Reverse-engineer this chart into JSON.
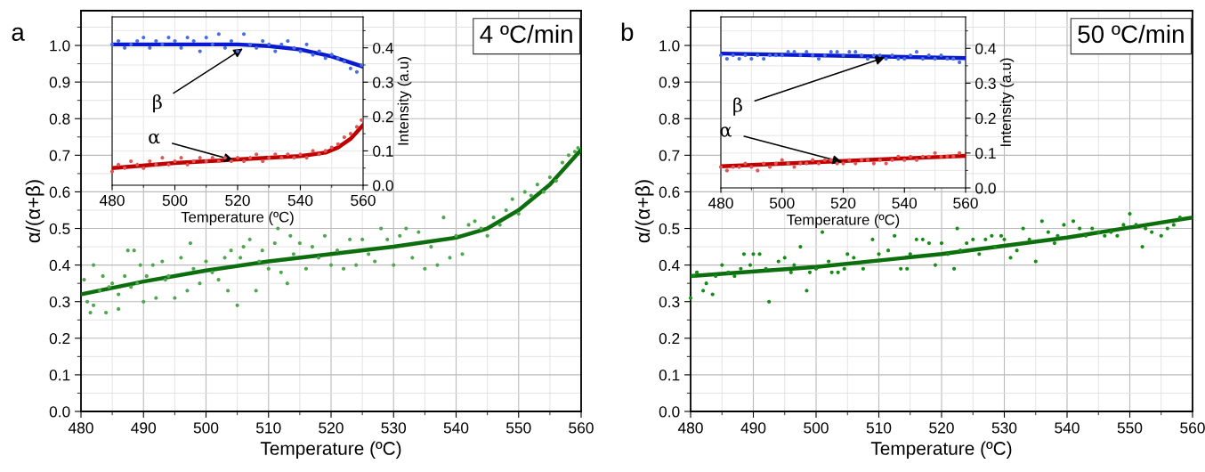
{
  "chart_data": [
    {
      "type": "scatter",
      "title": "a",
      "xlabel": "Temperature (ºC)",
      "ylabel": "α/(α+β)",
      "xlim": [
        480,
        560
      ],
      "xticks": [
        480,
        490,
        500,
        510,
        520,
        530,
        540,
        550,
        560
      ],
      "ylim": [
        0,
        1.095
      ],
      "yticks": [
        {
          "value": 0,
          "label": "0.0"
        },
        {
          "value": 0.1,
          "label": "0.1"
        },
        {
          "value": 0.2,
          "label": "0.2"
        },
        {
          "value": 0.3,
          "label": "0.3"
        },
        {
          "value": 0.4,
          "label": "0.4"
        },
        {
          "value": 0.5,
          "label": "0.5"
        },
        {
          "value": 0.6,
          "label": "0.6"
        },
        {
          "value": 0.7,
          "label": "0.7"
        },
        {
          "value": 0.8,
          "label": "0.8"
        },
        {
          "value": 0.9,
          "label": "0.9"
        },
        {
          "value": 1,
          "label": "1.0"
        }
      ],
      "grid": true,
      "annotations": [
        "4 ºC/min"
      ],
      "series": [
        {
          "type": "scatter",
          "marker": "circle",
          "color": "#4ea64e",
          "x": [
            480.5,
            481,
            481.5,
            482,
            482,
            483,
            483.5,
            484,
            484.5,
            485,
            486,
            486,
            487,
            487.5,
            488,
            488.5,
            489,
            489.5,
            490,
            490.5,
            491.5,
            492,
            493,
            493.5,
            494,
            495,
            496,
            497,
            497.5,
            498,
            499,
            500,
            501,
            502,
            503,
            503.5,
            504,
            505,
            505.5,
            506,
            507,
            508,
            508.5,
            509,
            510,
            511,
            511.5,
            512,
            513,
            513.5,
            514,
            515,
            516,
            517,
            518,
            519,
            520,
            521,
            522,
            523,
            524,
            525,
            526,
            527,
            528,
            529,
            530,
            531,
            532,
            533,
            534,
            535,
            536,
            537,
            538,
            539,
            540,
            541,
            542,
            543,
            544,
            545,
            546,
            547,
            548,
            549,
            550,
            551,
            552,
            553,
            554,
            555,
            556,
            557,
            558,
            559,
            559.5
          ],
          "values": [
            0.36,
            0.3,
            0.27,
            0.4,
            0.29,
            0.33,
            0.37,
            0.27,
            0.34,
            0.35,
            0.32,
            0.28,
            0.37,
            0.44,
            0.34,
            0.44,
            0.35,
            0.4,
            0.3,
            0.37,
            0.4,
            0.31,
            0.41,
            0.36,
            0.37,
            0.31,
            0.42,
            0.33,
            0.46,
            0.39,
            0.35,
            0.41,
            0.38,
            0.36,
            0.42,
            0.33,
            0.44,
            0.29,
            0.42,
            0.45,
            0.47,
            0.33,
            0.41,
            0.44,
            0.39,
            0.46,
            0.5,
            0.38,
            0.35,
            0.48,
            0.43,
            0.46,
            0.39,
            0.45,
            0.42,
            0.48,
            0.4,
            0.44,
            0.39,
            0.47,
            0.4,
            0.47,
            0.43,
            0.41,
            0.5,
            0.47,
            0.4,
            0.48,
            0.5,
            0.42,
            0.49,
            0.39,
            0.45,
            0.4,
            0.53,
            0.42,
            0.48,
            0.43,
            0.51,
            0.52,
            0.5,
            0.48,
            0.53,
            0.51,
            0.55,
            0.58,
            0.54,
            0.6,
            0.59,
            0.62,
            0.6,
            0.64,
            0.63,
            0.68,
            0.7,
            0.71,
            0.72
          ]
        },
        {
          "type": "line",
          "color": "#0d6e0d",
          "x": [
            480,
            490,
            500,
            510,
            520,
            530,
            540,
            545,
            550,
            555,
            560
          ],
          "values": [
            0.32,
            0.355,
            0.385,
            0.41,
            0.43,
            0.45,
            0.475,
            0.5,
            0.55,
            0.62,
            0.715
          ]
        }
      ]
    },
    {
      "type": "scatter",
      "xlabel": "Temperature (ºC)",
      "ylabel": "Intensity (a.u)",
      "xlim": [
        480,
        560
      ],
      "xticks": [
        480,
        500,
        520,
        540,
        560
      ],
      "ylim": [
        0,
        0.49
      ],
      "yticks": [
        {
          "value": 0,
          "label": "0.0"
        },
        0.1,
        0.2,
        0.3,
        0.4
      ],
      "grid": true,
      "annotations": [
        {
          "text": "β",
          "x": 522,
          "y": 0.4
        },
        {
          "text": "α",
          "x": 519,
          "y": 0.072
        }
      ],
      "series": [
        {
          "type": "scatter",
          "marker": "circle",
          "color": "#4a6ee0",
          "x": [
            480,
            482,
            484,
            486,
            488,
            490,
            492,
            494,
            496,
            498,
            500,
            502,
            504,
            506,
            508,
            510,
            512,
            514,
            516,
            518,
            520,
            522,
            524,
            526,
            528,
            530,
            532,
            534,
            536,
            538,
            540,
            542,
            544,
            546,
            548,
            550,
            552,
            554,
            556,
            558,
            559.5
          ],
          "values": [
            0.41,
            0.42,
            0.4,
            0.41,
            0.42,
            0.43,
            0.4,
            0.42,
            0.41,
            0.43,
            0.42,
            0.4,
            0.43,
            0.42,
            0.39,
            0.43,
            0.41,
            0.44,
            0.4,
            0.42,
            0.39,
            0.44,
            0.41,
            0.4,
            0.42,
            0.41,
            0.39,
            0.41,
            0.42,
            0.4,
            0.39,
            0.41,
            0.38,
            0.39,
            0.37,
            0.38,
            0.37,
            0.36,
            0.34,
            0.33,
            0.35
          ]
        },
        {
          "type": "line",
          "color": "#0a1ad0",
          "x": [
            480,
            500,
            520,
            530,
            540,
            550,
            555,
            560
          ],
          "values": [
            0.41,
            0.41,
            0.41,
            0.405,
            0.395,
            0.375,
            0.36,
            0.345
          ]
        },
        {
          "type": "scatter",
          "marker": "circle",
          "color": "#e05555",
          "x": [
            480,
            482,
            484,
            486,
            488,
            490,
            492,
            494,
            496,
            498,
            500,
            502,
            504,
            506,
            508,
            510,
            512,
            514,
            516,
            518,
            520,
            522,
            524,
            526,
            528,
            530,
            532,
            534,
            536,
            538,
            540,
            542,
            544,
            546,
            548,
            550,
            552,
            554,
            556,
            558,
            559.5
          ],
          "values": [
            0.04,
            0.06,
            0.05,
            0.07,
            0.06,
            0.05,
            0.07,
            0.06,
            0.08,
            0.06,
            0.07,
            0.08,
            0.06,
            0.07,
            0.08,
            0.07,
            0.08,
            0.07,
            0.08,
            0.07,
            0.08,
            0.07,
            0.08,
            0.09,
            0.07,
            0.08,
            0.09,
            0.08,
            0.09,
            0.08,
            0.09,
            0.08,
            0.1,
            0.09,
            0.1,
            0.11,
            0.12,
            0.14,
            0.15,
            0.17,
            0.19
          ]
        },
        {
          "type": "line",
          "color": "#c00000",
          "x": [
            480,
            500,
            520,
            540,
            548,
            552,
            556,
            560
          ],
          "values": [
            0.05,
            0.065,
            0.075,
            0.085,
            0.095,
            0.11,
            0.135,
            0.175
          ]
        }
      ]
    },
    {
      "type": "scatter",
      "title": "b",
      "xlabel": "Temperature (ºC)",
      "ylabel": "α/(α+β)",
      "xlim": [
        480,
        560
      ],
      "xticks": [
        480,
        490,
        500,
        510,
        520,
        530,
        540,
        550,
        560
      ],
      "ylim": [
        0,
        1.095
      ],
      "yticks": [
        {
          "value": 0,
          "label": "0.0"
        },
        {
          "value": 0.1,
          "label": "0.1"
        },
        {
          "value": 0.2,
          "label": "0.2"
        },
        {
          "value": 0.3,
          "label": "0.3"
        },
        {
          "value": 0.4,
          "label": "0.4"
        },
        {
          "value": 0.5,
          "label": "0.5"
        },
        {
          "value": 0.6,
          "label": "0.6"
        },
        {
          "value": 0.7,
          "label": "0.7"
        },
        {
          "value": 0.8,
          "label": "0.8"
        },
        {
          "value": 0.9,
          "label": "0.9"
        },
        {
          "value": 1,
          "label": "1.0"
        }
      ],
      "grid": true,
      "annotations": [
        "50 ºC/min"
      ],
      "series": [
        {
          "type": "scatter",
          "marker": "circle",
          "color": "#158c15",
          "x": [
            480,
            480.5,
            481,
            482,
            482.5,
            483.5,
            484,
            485,
            486,
            487,
            488,
            488.5,
            489.5,
            490,
            491,
            492,
            492.5,
            494,
            495,
            496,
            496.5,
            497.5,
            498.5,
            499,
            500,
            501,
            502,
            502.5,
            503.5,
            504.5,
            505,
            506,
            507.5,
            509,
            510,
            511.5,
            512.5,
            513.5,
            514.5,
            515,
            516,
            517,
            518,
            519,
            520,
            521,
            522,
            522.5,
            523,
            524,
            525,
            526,
            527,
            528,
            528.5,
            529.5,
            530,
            531,
            532,
            533,
            534,
            535,
            536,
            537,
            538,
            538.5,
            539.5,
            541,
            542,
            543,
            544,
            545,
            546,
            547,
            548,
            549,
            550,
            551,
            552,
            552.5,
            553.5,
            555,
            556,
            557,
            558
          ],
          "values": [
            0.31,
            0.37,
            0.38,
            0.33,
            0.35,
            0.32,
            0.37,
            0.4,
            0.38,
            0.37,
            0.39,
            0.43,
            0.4,
            0.43,
            0.43,
            0.39,
            0.3,
            0.41,
            0.42,
            0.38,
            0.4,
            0.45,
            0.33,
            0.38,
            0.39,
            0.49,
            0.41,
            0.38,
            0.38,
            0.39,
            0.43,
            0.42,
            0.39,
            0.47,
            0.43,
            0.44,
            0.48,
            0.39,
            0.39,
            0.43,
            0.47,
            0.47,
            0.46,
            0.4,
            0.46,
            0.43,
            0.39,
            0.5,
            0.44,
            0.46,
            0.47,
            0.43,
            0.47,
            0.48,
            0.45,
            0.48,
            0.47,
            0.42,
            0.44,
            0.5,
            0.47,
            0.41,
            0.52,
            0.49,
            0.46,
            0.48,
            0.51,
            0.52,
            0.5,
            0.48,
            0.5,
            0.49,
            0.48,
            0.49,
            0.48,
            0.51,
            0.54,
            0.51,
            0.45,
            0.5,
            0.49,
            0.48,
            0.5,
            0.51,
            0.53
          ]
        },
        {
          "type": "line",
          "color": "#0d6e0d",
          "x": [
            480,
            500,
            520,
            540,
            560
          ],
          "values": [
            0.37,
            0.395,
            0.43,
            0.475,
            0.53
          ]
        }
      ]
    },
    {
      "type": "scatter",
      "xlabel": "Temperature (ºC)",
      "ylabel": "Intensity (a.u)",
      "xlim": [
        480,
        560
      ],
      "xticks": [
        480,
        500,
        520,
        540,
        560
      ],
      "ylim": [
        0,
        0.49
      ],
      "yticks": [
        {
          "value": 0,
          "label": "0.0"
        },
        0.1,
        0.2,
        0.3,
        0.4
      ],
      "grid": true,
      "annotations": [
        {
          "text": "β",
          "x": 534,
          "y": 0.375
        },
        {
          "text": "α",
          "x": 520,
          "y": 0.073
        }
      ],
      "series": [
        {
          "type": "scatter",
          "marker": "circle",
          "color": "#4a6ee0",
          "x": [
            480,
            482,
            484,
            486,
            488,
            490,
            492,
            494,
            496,
            498,
            500,
            502,
            504,
            506,
            508,
            510,
            512,
            514,
            516,
            518,
            520,
            522,
            524,
            526,
            528,
            530,
            532,
            534,
            536,
            538,
            540,
            542,
            544,
            546,
            548,
            550,
            552,
            554,
            556,
            558
          ],
          "values": [
            0.38,
            0.37,
            0.38,
            0.37,
            0.38,
            0.37,
            0.38,
            0.37,
            0.38,
            0.38,
            0.38,
            0.39,
            0.39,
            0.38,
            0.39,
            0.38,
            0.37,
            0.38,
            0.39,
            0.39,
            0.38,
            0.39,
            0.39,
            0.38,
            0.37,
            0.38,
            0.38,
            0.37,
            0.38,
            0.37,
            0.37,
            0.38,
            0.39,
            0.37,
            0.38,
            0.37,
            0.38,
            0.37,
            0.37,
            0.36
          ]
        },
        {
          "type": "line",
          "color": "#0a1ad0",
          "x": [
            480,
            560
          ],
          "values": [
            0.385,
            0.372
          ]
        },
        {
          "type": "scatter",
          "marker": "circle",
          "color": "#e05555",
          "x": [
            480,
            482,
            484,
            486,
            488,
            490,
            492,
            494,
            496,
            498,
            500,
            502,
            504,
            506,
            508,
            510,
            512,
            514,
            516,
            518,
            520,
            522,
            524,
            526,
            528,
            530,
            532,
            534,
            536,
            538,
            540,
            542,
            544,
            546,
            548,
            550,
            552,
            554,
            556,
            558
          ],
          "values": [
            0.06,
            0.05,
            0.06,
            0.06,
            0.07,
            0.06,
            0.05,
            0.07,
            0.06,
            0.07,
            0.08,
            0.07,
            0.06,
            0.07,
            0.07,
            0.08,
            0.07,
            0.08,
            0.08,
            0.07,
            0.07,
            0.08,
            0.07,
            0.08,
            0.08,
            0.07,
            0.08,
            0.07,
            0.08,
            0.09,
            0.08,
            0.09,
            0.08,
            0.09,
            0.09,
            0.1,
            0.09,
            0.09,
            0.09,
            0.1
          ]
        },
        {
          "type": "line",
          "color": "#c00000",
          "x": [
            480,
            560
          ],
          "values": [
            0.062,
            0.092
          ]
        }
      ]
    }
  ]
}
